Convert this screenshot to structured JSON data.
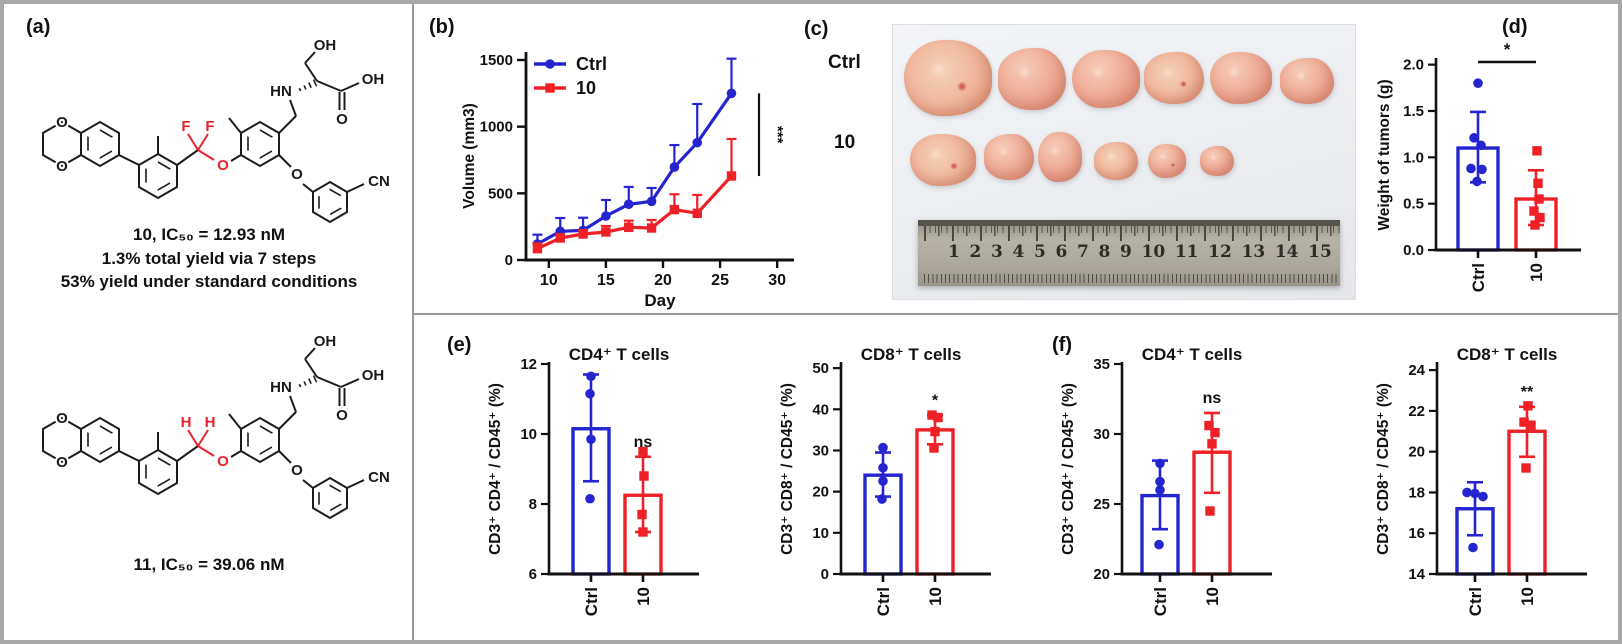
{
  "colors": {
    "blue": "#2425cf",
    "red": "#ee2127",
    "axis": "#111111",
    "divider": "#9a9a9a",
    "border": "#a8a8a8"
  },
  "panels": {
    "a": {
      "label": "(a)",
      "compound10": {
        "caption1": "10, IC₅₀ = 12.93 nM",
        "caption2": "1.3% total yield via 7 steps",
        "caption3": "53% yield under standard conditions",
        "atoms": {
          "o_top": "O",
          "o_bottom": "O",
          "sub1": "F",
          "sub2": "F",
          "o_link": "O",
          "hn": "HN",
          "oh_top": "OH",
          "oh_acid": "OH",
          "o_carbonyl": "O",
          "o_benzyl": "O",
          "cn": "CN"
        }
      },
      "compound11": {
        "caption1": "11, IC₅₀ = 39.06 nM",
        "atoms": {
          "o_top": "O",
          "o_bottom": "O",
          "sub1": "H",
          "sub2": "H",
          "o_link": "O",
          "hn": "HN",
          "oh_top": "OH",
          "oh_acid": "OH",
          "o_carbonyl": "O",
          "o_benzyl": "O",
          "cn": "CN"
        }
      }
    },
    "b": {
      "label": "(b)"
    },
    "c": {
      "label": "(c)",
      "row_labels": [
        "Ctrl",
        "10"
      ],
      "ruler_numbers": [
        "1",
        "2",
        "3",
        "4",
        "5",
        "6",
        "7",
        "8",
        "9",
        "10",
        "11",
        "12",
        "13",
        "14",
        "15"
      ],
      "tumors_ctrl": [
        [
          12,
          16,
          88,
          76
        ],
        [
          106,
          24,
          68,
          62
        ],
        [
          180,
          26,
          68,
          58
        ],
        [
          252,
          28,
          60,
          52
        ],
        [
          318,
          28,
          62,
          52
        ],
        [
          388,
          34,
          54,
          46
        ]
      ],
      "tumors_treated": [
        [
          18,
          110,
          66,
          52
        ],
        [
          92,
          110,
          50,
          46
        ],
        [
          146,
          108,
          44,
          50
        ],
        [
          202,
          118,
          44,
          38
        ],
        [
          256,
          120,
          38,
          34
        ],
        [
          308,
          122,
          34,
          30
        ]
      ]
    },
    "d": {
      "label": "(d)"
    },
    "e": {
      "label": "(e)"
    },
    "f": {
      "label": "(f)"
    }
  },
  "chart_data": [
    {
      "id": "b-tumor-volume",
      "type": "line",
      "title": "",
      "xlabel": "Day",
      "ylabel": "Volume (mm3)",
      "xlim": [
        8,
        30.6
      ],
      "ylim": [
        0,
        1560
      ],
      "xticks": [
        10,
        15,
        20,
        25,
        30
      ],
      "yticks": [
        0,
        500,
        1000,
        1500
      ],
      "x": [
        9,
        11,
        13,
        15,
        17,
        19,
        21,
        23,
        26
      ],
      "series": [
        {
          "name": "Ctrl",
          "color": "#2425cf",
          "marker": "circle",
          "values": [
            120,
            215,
            222,
            330,
            418,
            440,
            697,
            880,
            1250
          ],
          "err_up": [
            70,
            100,
            95,
            120,
            130,
            100,
            165,
            290,
            260
          ]
        },
        {
          "name": "10",
          "color": "#ee2127",
          "marker": "square",
          "values": [
            85,
            165,
            195,
            210,
            245,
            240,
            378,
            350,
            630
          ],
          "err_up": [
            40,
            30,
            30,
            45,
            50,
            60,
            115,
            138,
            278
          ]
        }
      ],
      "significance": "***",
      "legend_position": "top-left",
      "grid": false
    },
    {
      "id": "d-tumor-weight",
      "type": "bar",
      "title": "",
      "ylabel": "Weight of tumors (g)",
      "ylim": [
        0,
        2.05
      ],
      "yticks": [
        0,
        0.5,
        1,
        1.5,
        2
      ],
      "ytick_labels": [
        "0.0",
        "0.5",
        "1.0",
        "1.5",
        "2.0"
      ],
      "categories": [
        "Ctrl",
        "10"
      ],
      "groups": [
        {
          "label": "Ctrl",
          "color": "#2425cf",
          "marker": "circle",
          "mean": 1.1,
          "err": [
            0.73,
            1.49
          ],
          "points": [
            1.8,
            1.21,
            1.13,
            0.88,
            0.87,
            0.74
          ],
          "point_dx": [
            0,
            -4,
            3,
            -7,
            4,
            -1
          ]
        },
        {
          "label": "10",
          "color": "#ee2127",
          "marker": "square",
          "mean": 0.55,
          "err": [
            0.27,
            0.86
          ],
          "points": [
            1.07,
            0.72,
            0.55,
            0.42,
            0.35,
            0.27
          ],
          "point_dx": [
            1,
            2,
            3,
            -2,
            4,
            -1
          ]
        }
      ],
      "significance": {
        "style": "bracket",
        "label": "*"
      }
    },
    {
      "id": "e-cd4",
      "type": "bar",
      "title": "CD4⁺ T cells",
      "ylabel": "CD3⁺ CD4⁺ / CD45⁺ (%)",
      "ylim": [
        6,
        12
      ],
      "yticks": [
        6,
        8,
        10,
        12
      ],
      "categories": [
        "Ctrl",
        "10"
      ],
      "groups": [
        {
          "label": "Ctrl",
          "color": "#2425cf",
          "marker": "circle",
          "mean": 10.15,
          "err": [
            8.65,
            11.7
          ],
          "points": [
            11.65,
            11.15,
            9.85,
            8.15
          ],
          "point_dx": [
            0,
            -1,
            0,
            -1
          ]
        },
        {
          "label": "10",
          "color": "#ee2127",
          "marker": "square",
          "mean": 8.25,
          "err": [
            7.2,
            9.35
          ],
          "points": [
            9.5,
            8.8,
            7.7,
            7.2
          ],
          "point_dx": [
            0,
            1,
            -1,
            0
          ]
        }
      ],
      "significance": {
        "style": "text",
        "label": "ns"
      }
    },
    {
      "id": "e-cd8",
      "type": "bar",
      "title": "CD8⁺ T cells",
      "ylabel": "CD3⁺ CD8⁺ / CD45⁺ (%)",
      "ylim": [
        0,
        51
      ],
      "yticks": [
        0,
        10,
        20,
        30,
        40,
        50
      ],
      "categories": [
        "Ctrl",
        "10"
      ],
      "groups": [
        {
          "label": "Ctrl",
          "color": "#2425cf",
          "marker": "circle",
          "mean": 24,
          "err": [
            18.8,
            29.5
          ],
          "points": [
            30.7,
            25.8,
            22.6,
            18.2
          ],
          "point_dx": [
            0,
            0,
            0,
            -1
          ]
        },
        {
          "label": "10",
          "color": "#ee2127",
          "marker": "square",
          "mean": 35,
          "err": [
            31.5,
            38.5
          ],
          "points": [
            38.6,
            38.0,
            34.6,
            30.6
          ],
          "point_dx": [
            -3,
            3,
            0,
            -1
          ]
        }
      ],
      "significance": {
        "style": "text",
        "label": "*"
      }
    },
    {
      "id": "f-cd4",
      "type": "bar",
      "title": "CD4⁺ T cells",
      "ylabel": "CD3⁺ CD4⁺ / CD45⁺ (%)",
      "ylim": [
        20,
        35
      ],
      "yticks": [
        20,
        25,
        30,
        35
      ],
      "categories": [
        "Ctrl",
        "10"
      ],
      "groups": [
        {
          "label": "Ctrl",
          "color": "#2425cf",
          "marker": "circle",
          "mean": 25.6,
          "err": [
            23.2,
            28.1
          ],
          "points": [
            27.9,
            26.6,
            26.0,
            22.1
          ],
          "point_dx": [
            0,
            0,
            0,
            -1
          ]
        },
        {
          "label": "10",
          "color": "#ee2127",
          "marker": "square",
          "mean": 28.7,
          "err": [
            25.8,
            31.5
          ],
          "points": [
            30.6,
            30.1,
            29.3,
            24.5
          ],
          "point_dx": [
            -3,
            3,
            0,
            -2
          ]
        }
      ],
      "significance": {
        "style": "text",
        "label": "ns"
      }
    },
    {
      "id": "f-cd8",
      "type": "bar",
      "title": "CD8⁺ T cells",
      "ylabel": "CD3⁺ CD8⁺ / CD45⁺ (%)",
      "ylim": [
        14,
        24.3
      ],
      "yticks": [
        14,
        16,
        18,
        20,
        22,
        24
      ],
      "categories": [
        "Ctrl",
        "10"
      ],
      "groups": [
        {
          "label": "Ctrl",
          "color": "#2425cf",
          "marker": "circle",
          "mean": 17.2,
          "err": [
            15.9,
            18.5
          ],
          "points": [
            18.0,
            17.95,
            17.8,
            15.3
          ],
          "point_dx": [
            -8,
            0,
            8,
            -2
          ]
        },
        {
          "label": "10",
          "color": "#ee2127",
          "marker": "square",
          "mean": 21.0,
          "err": [
            19.75,
            22.2
          ],
          "points": [
            22.25,
            21.45,
            21.3,
            19.2
          ],
          "point_dx": [
            1,
            -3,
            4,
            -1
          ]
        }
      ],
      "significance": {
        "style": "text",
        "label": "**"
      }
    }
  ]
}
